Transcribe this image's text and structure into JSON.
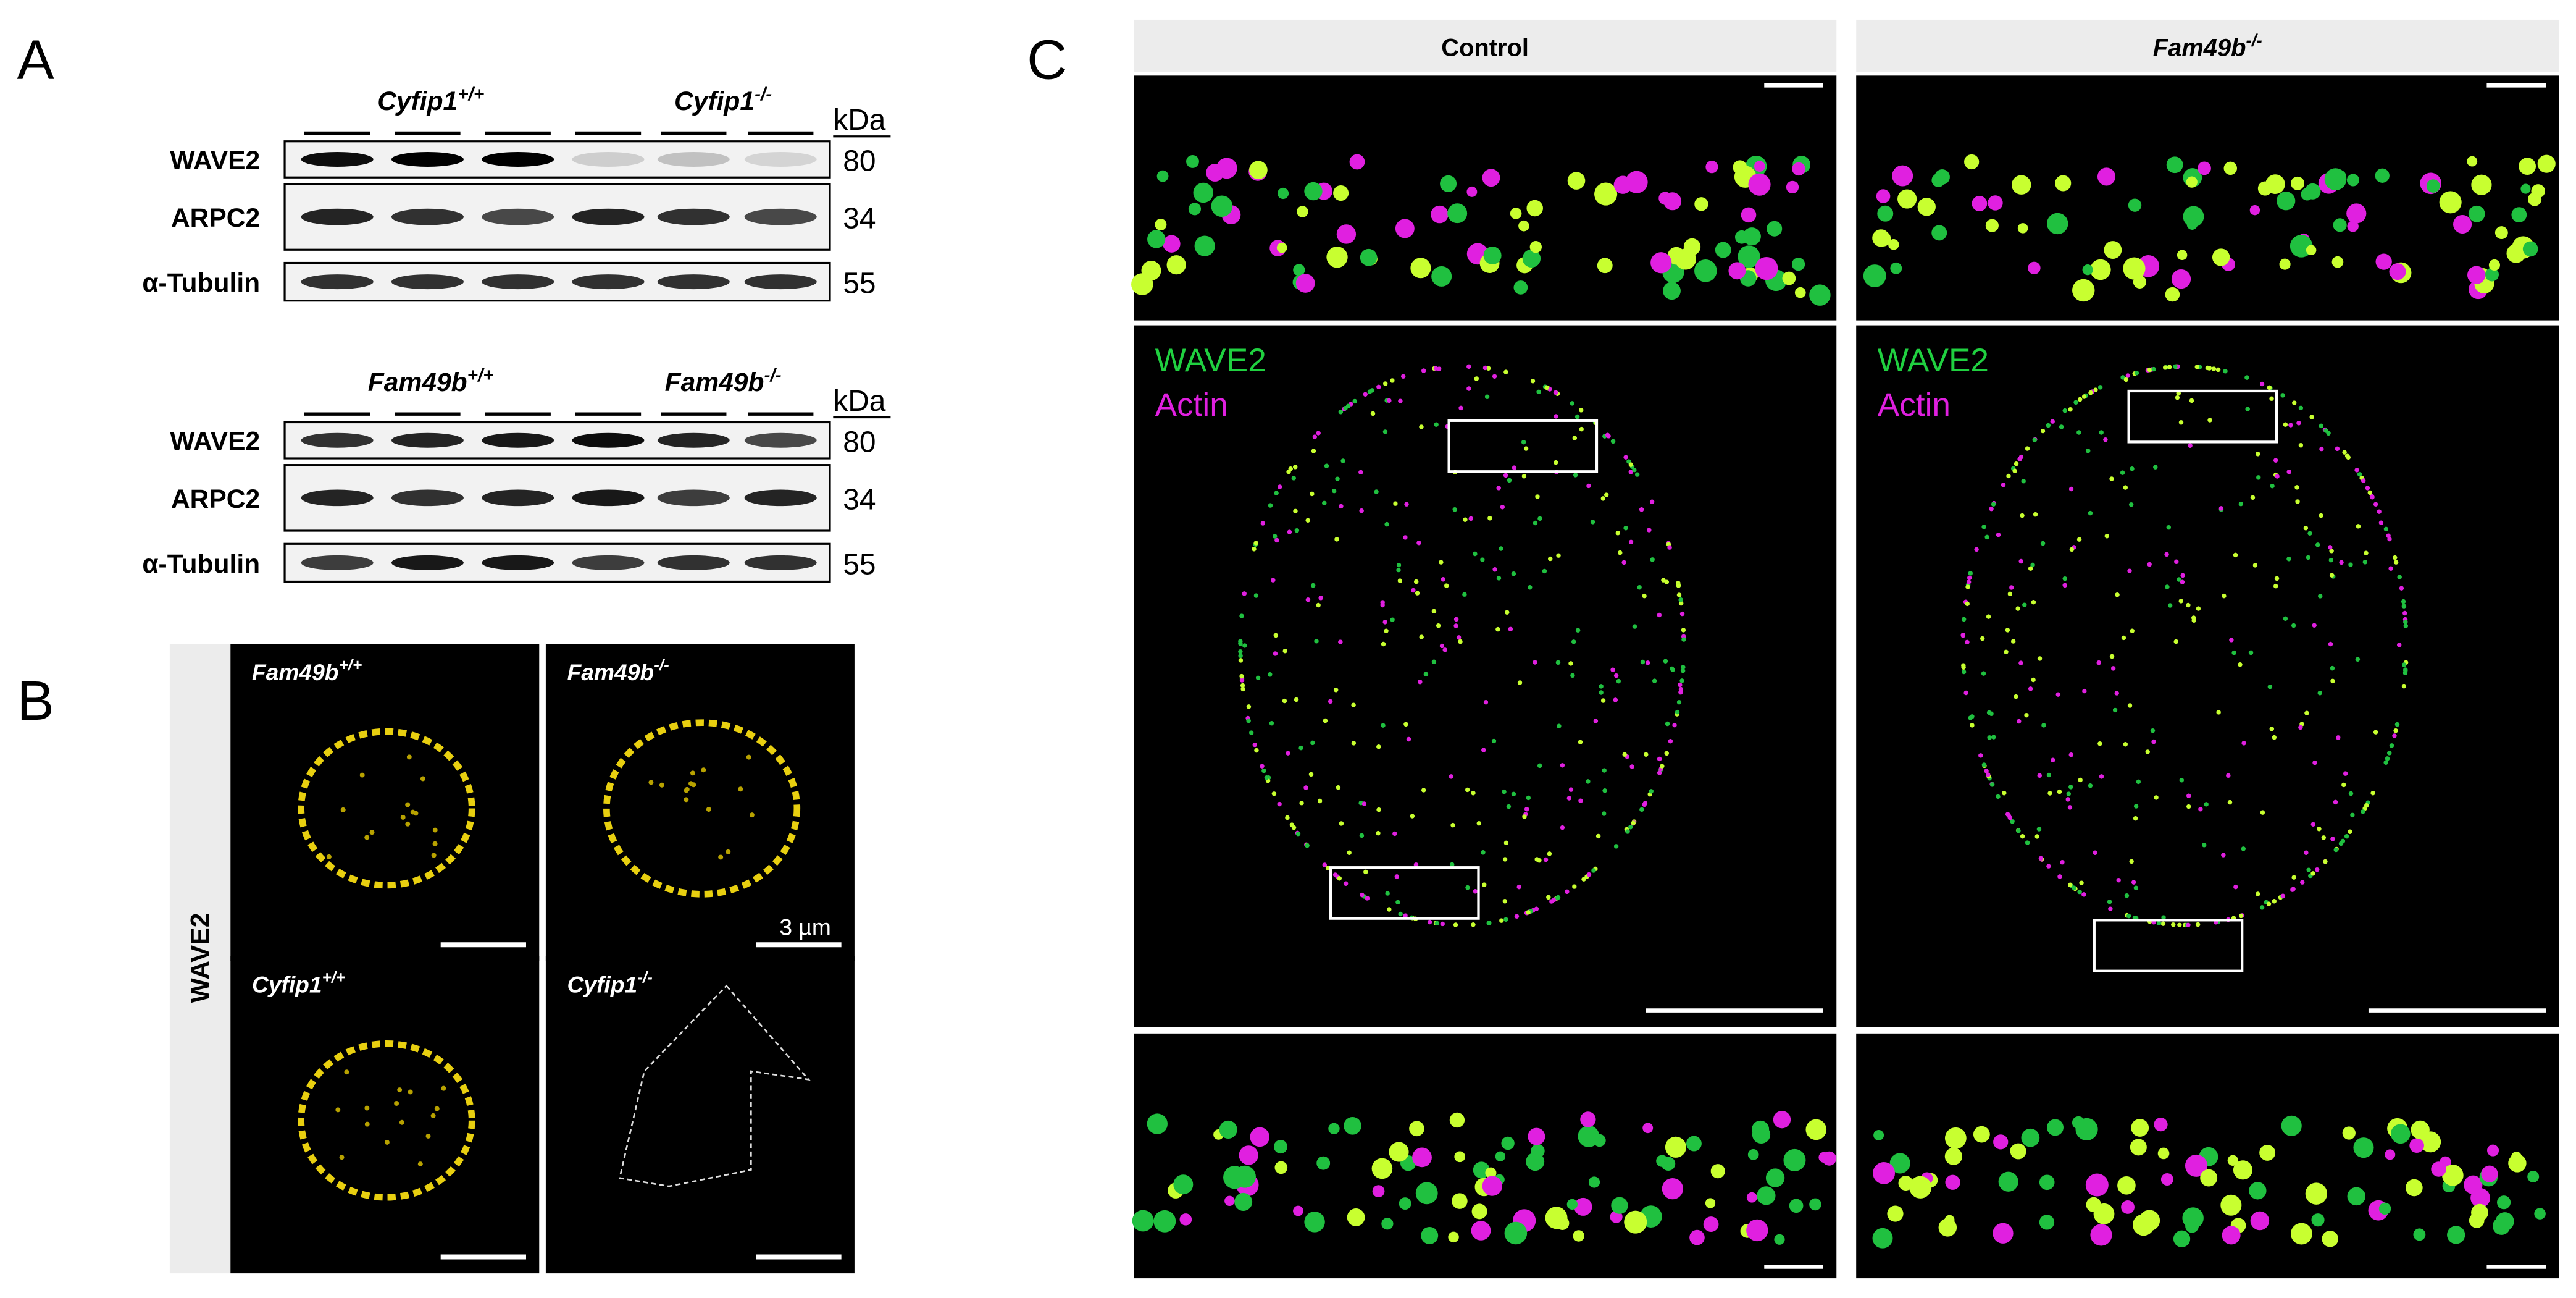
{
  "panels": {
    "a": {
      "label": "A",
      "blots": [
        {
          "groups": [
            {
              "gene": "Cyfip1",
              "genotype": "+/+"
            },
            {
              "gene": "Cyfip1",
              "genotype": "-/-"
            }
          ],
          "unit": "kDa",
          "rows": [
            {
              "name": "WAVE2",
              "size": 80
            },
            {
              "name": "ARPC2",
              "size": 34
            },
            {
              "name": "α-Tubulin",
              "size": 55
            }
          ]
        },
        {
          "groups": [
            {
              "gene": "Fam49b",
              "genotype": "+/+"
            },
            {
              "gene": "Fam49b",
              "genotype": "-/-"
            }
          ],
          "unit": "kDa",
          "rows": [
            {
              "name": "WAVE2",
              "size": 80
            },
            {
              "name": "ARPC2",
              "size": 34
            },
            {
              "name": "α-Tubulin",
              "size": 55
            }
          ]
        }
      ]
    },
    "b": {
      "label": "B",
      "stain": "WAVE2",
      "scale": "3 µm",
      "images": [
        {
          "gene": "Fam49b",
          "genotype": "+/+"
        },
        {
          "gene": "Fam49b",
          "genotype": "-/-"
        },
        {
          "gene": "Cyfip1",
          "genotype": "+/+"
        },
        {
          "gene": "Cyfip1",
          "genotype": "-/-"
        }
      ]
    },
    "c": {
      "label": "C",
      "columns": [
        {
          "title": "Control"
        },
        {
          "gene": "Fam49b",
          "genotype": "-/-"
        }
      ],
      "legend": [
        "WAVE2",
        "Actin"
      ]
    }
  }
}
